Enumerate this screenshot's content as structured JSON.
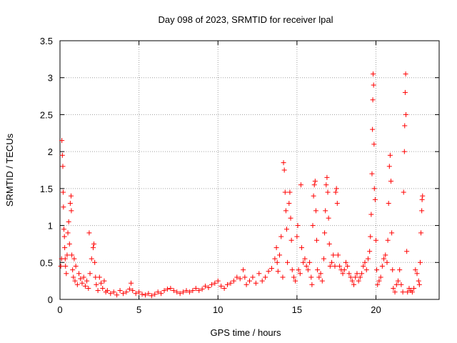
{
  "chart_data": {
    "type": "scatter",
    "title": "Day 098 of 2023, SRMTID for receiver lpal",
    "xlabel": "GPS time / hours",
    "ylabel": "SRMTID / TECUs",
    "xlim": [
      0,
      24
    ],
    "ylim": [
      0,
      3.5
    ],
    "xticks": [
      0,
      5,
      10,
      15,
      20
    ],
    "xtick_labels": [
      "0",
      "5",
      "10",
      "15",
      "20"
    ],
    "yticks": [
      0,
      0.5,
      1,
      1.5,
      2,
      2.5,
      3,
      3.5
    ],
    "ytick_labels": [
      "0",
      "0.5",
      "1",
      "1.5",
      "2",
      "2.5",
      "3",
      "3.5"
    ],
    "grid": true,
    "marker": "plus",
    "color": "#ff0000",
    "series": [
      {
        "name": "SRMTID",
        "points": [
          [
            0.05,
            0.45
          ],
          [
            0.1,
            0.55
          ],
          [
            0.12,
            2.15
          ],
          [
            0.15,
            1.95
          ],
          [
            0.18,
            1.8
          ],
          [
            0.2,
            1.45
          ],
          [
            0.22,
            1.25
          ],
          [
            0.25,
            0.95
          ],
          [
            0.28,
            0.85
          ],
          [
            0.3,
            0.7
          ],
          [
            0.33,
            0.55
          ],
          [
            0.35,
            0.45
          ],
          [
            0.4,
            0.35
          ],
          [
            0.45,
            0.6
          ],
          [
            0.5,
            0.9
          ],
          [
            0.55,
            1.05
          ],
          [
            0.6,
            0.75
          ],
          [
            0.65,
            1.3
          ],
          [
            0.7,
            1.4
          ],
          [
            0.72,
            1.2
          ],
          [
            0.75,
            0.6
          ],
          [
            0.8,
            0.4
          ],
          [
            0.85,
            0.3
          ],
          [
            0.9,
            0.55
          ],
          [
            0.95,
            0.25
          ],
          [
            1.0,
            0.45
          ],
          [
            1.1,
            0.2
          ],
          [
            1.2,
            0.35
          ],
          [
            1.3,
            0.28
          ],
          [
            1.4,
            0.22
          ],
          [
            1.5,
            0.3
          ],
          [
            1.6,
            0.18
          ],
          [
            1.7,
            0.25
          ],
          [
            1.8,
            0.15
          ],
          [
            1.85,
            0.9
          ],
          [
            1.9,
            0.35
          ],
          [
            2.0,
            0.55
          ],
          [
            2.1,
            0.7
          ],
          [
            2.15,
            0.75
          ],
          [
            2.2,
            0.5
          ],
          [
            2.25,
            0.3
          ],
          [
            2.3,
            0.2
          ],
          [
            2.4,
            0.12
          ],
          [
            2.5,
            0.3
          ],
          [
            2.6,
            0.22
          ],
          [
            2.7,
            0.15
          ],
          [
            2.8,
            0.25
          ],
          [
            2.9,
            0.1
          ],
          [
            3.0,
            0.12
          ],
          [
            3.2,
            0.08
          ],
          [
            3.4,
            0.1
          ],
          [
            3.6,
            0.06
          ],
          [
            3.8,
            0.12
          ],
          [
            4.0,
            0.08
          ],
          [
            4.2,
            0.1
          ],
          [
            4.4,
            0.14
          ],
          [
            4.5,
            0.22
          ],
          [
            4.6,
            0.12
          ],
          [
            4.8,
            0.08
          ],
          [
            5.0,
            0.1
          ],
          [
            5.2,
            0.07
          ],
          [
            5.4,
            0.06
          ],
          [
            5.6,
            0.08
          ],
          [
            5.8,
            0.05
          ],
          [
            6.0,
            0.07
          ],
          [
            6.2,
            0.1
          ],
          [
            6.4,
            0.08
          ],
          [
            6.6,
            0.12
          ],
          [
            6.8,
            0.14
          ],
          [
            7.0,
            0.15
          ],
          [
            7.2,
            0.12
          ],
          [
            7.4,
            0.1
          ],
          [
            7.6,
            0.08
          ],
          [
            7.8,
            0.1
          ],
          [
            8.0,
            0.12
          ],
          [
            8.2,
            0.1
          ],
          [
            8.4,
            0.12
          ],
          [
            8.6,
            0.15
          ],
          [
            8.8,
            0.12
          ],
          [
            9.0,
            0.14
          ],
          [
            9.2,
            0.18
          ],
          [
            9.4,
            0.16
          ],
          [
            9.6,
            0.2
          ],
          [
            9.8,
            0.22
          ],
          [
            10.0,
            0.25
          ],
          [
            10.2,
            0.18
          ],
          [
            10.4,
            0.15
          ],
          [
            10.6,
            0.2
          ],
          [
            10.8,
            0.22
          ],
          [
            11.0,
            0.25
          ],
          [
            11.2,
            0.3
          ],
          [
            11.4,
            0.28
          ],
          [
            11.6,
            0.4
          ],
          [
            11.7,
            0.3
          ],
          [
            11.8,
            0.2
          ],
          [
            12.0,
            0.25
          ],
          [
            12.2,
            0.3
          ],
          [
            12.4,
            0.22
          ],
          [
            12.6,
            0.35
          ],
          [
            12.8,
            0.25
          ],
          [
            13.0,
            0.3
          ],
          [
            13.2,
            0.38
          ],
          [
            13.4,
            0.42
          ],
          [
            13.6,
            0.55
          ],
          [
            13.7,
            0.7
          ],
          [
            13.75,
            0.5
          ],
          [
            13.8,
            0.38
          ],
          [
            13.9,
            0.6
          ],
          [
            14.0,
            0.85
          ],
          [
            14.1,
            0.3
          ],
          [
            14.15,
            1.85
          ],
          [
            14.2,
            1.75
          ],
          [
            14.25,
            1.45
          ],
          [
            14.3,
            1.2
          ],
          [
            14.35,
            0.95
          ],
          [
            14.4,
            0.5
          ],
          [
            14.5,
            1.3
          ],
          [
            14.55,
            1.45
          ],
          [
            14.6,
            1.1
          ],
          [
            14.65,
            0.8
          ],
          [
            14.7,
            0.4
          ],
          [
            14.8,
            0.3
          ],
          [
            14.9,
            0.25
          ],
          [
            15.0,
            0.85
          ],
          [
            15.05,
            1.0
          ],
          [
            15.1,
            0.4
          ],
          [
            15.2,
            0.35
          ],
          [
            15.25,
            1.55
          ],
          [
            15.3,
            0.7
          ],
          [
            15.4,
            0.5
          ],
          [
            15.5,
            0.55
          ],
          [
            15.6,
            0.45
          ],
          [
            15.7,
            0.4
          ],
          [
            15.8,
            0.5
          ],
          [
            15.9,
            0.3
          ],
          [
            15.95,
            0.2
          ],
          [
            16.0,
            1.0
          ],
          [
            16.05,
            1.4
          ],
          [
            16.1,
            1.55
          ],
          [
            16.15,
            1.6
          ],
          [
            16.2,
            1.2
          ],
          [
            16.25,
            0.8
          ],
          [
            16.3,
            0.4
          ],
          [
            16.4,
            0.3
          ],
          [
            16.5,
            0.35
          ],
          [
            16.6,
            0.25
          ],
          [
            16.7,
            0.55
          ],
          [
            16.75,
            0.9
          ],
          [
            16.8,
            1.2
          ],
          [
            16.85,
            1.55
          ],
          [
            16.9,
            1.65
          ],
          [
            16.95,
            1.45
          ],
          [
            17.0,
            1.1
          ],
          [
            17.05,
            0.75
          ],
          [
            17.1,
            0.45
          ],
          [
            17.2,
            0.5
          ],
          [
            17.3,
            0.6
          ],
          [
            17.4,
            0.45
          ],
          [
            17.45,
            1.45
          ],
          [
            17.5,
            1.5
          ],
          [
            17.55,
            1.3
          ],
          [
            17.6,
            0.6
          ],
          [
            17.7,
            0.45
          ],
          [
            17.8,
            0.4
          ],
          [
            17.9,
            0.35
          ],
          [
            18.0,
            0.4
          ],
          [
            18.1,
            0.5
          ],
          [
            18.2,
            0.45
          ],
          [
            18.3,
            0.35
          ],
          [
            18.4,
            0.3
          ],
          [
            18.5,
            0.25
          ],
          [
            18.6,
            0.2
          ],
          [
            18.7,
            0.3
          ],
          [
            18.8,
            0.35
          ],
          [
            18.9,
            0.25
          ],
          [
            19.0,
            0.3
          ],
          [
            19.1,
            0.35
          ],
          [
            19.2,
            0.45
          ],
          [
            19.3,
            0.5
          ],
          [
            19.4,
            0.4
          ],
          [
            19.5,
            0.55
          ],
          [
            19.6,
            0.65
          ],
          [
            19.65,
            0.85
          ],
          [
            19.7,
            1.15
          ],
          [
            19.75,
            1.7
          ],
          [
            19.78,
            2.3
          ],
          [
            19.8,
            2.7
          ],
          [
            19.82,
            3.05
          ],
          [
            19.85,
            2.9
          ],
          [
            19.88,
            2.1
          ],
          [
            19.9,
            1.5
          ],
          [
            19.95,
            1.35
          ],
          [
            20.0,
            0.8
          ],
          [
            20.05,
            0.4
          ],
          [
            20.1,
            0.2
          ],
          [
            20.2,
            0.25
          ],
          [
            20.3,
            0.3
          ],
          [
            20.4,
            0.45
          ],
          [
            20.5,
            0.55
          ],
          [
            20.6,
            0.6
          ],
          [
            20.7,
            0.5
          ],
          [
            20.75,
            0.8
          ],
          [
            20.8,
            1.3
          ],
          [
            20.85,
            1.8
          ],
          [
            20.9,
            1.95
          ],
          [
            20.95,
            1.6
          ],
          [
            21.0,
            0.9
          ],
          [
            21.05,
            0.4
          ],
          [
            21.1,
            0.15
          ],
          [
            21.2,
            0.1
          ],
          [
            21.3,
            0.2
          ],
          [
            21.4,
            0.25
          ],
          [
            21.5,
            0.4
          ],
          [
            21.6,
            0.2
          ],
          [
            21.7,
            0.1
          ],
          [
            21.75,
            1.45
          ],
          [
            21.8,
            2.0
          ],
          [
            21.82,
            2.35
          ],
          [
            21.85,
            2.8
          ],
          [
            21.88,
            3.05
          ],
          [
            21.9,
            2.5
          ],
          [
            21.95,
            0.65
          ],
          [
            22.0,
            0.1
          ],
          [
            22.1,
            0.15
          ],
          [
            22.2,
            0.12
          ],
          [
            22.3,
            0.1
          ],
          [
            22.4,
            0.15
          ],
          [
            22.5,
            0.4
          ],
          [
            22.6,
            0.35
          ],
          [
            22.7,
            0.25
          ],
          [
            22.75,
            0.2
          ],
          [
            22.8,
            0.5
          ],
          [
            22.85,
            0.9
          ],
          [
            22.9,
            1.2
          ],
          [
            22.92,
            1.35
          ],
          [
            22.95,
            1.4
          ]
        ]
      }
    ]
  }
}
